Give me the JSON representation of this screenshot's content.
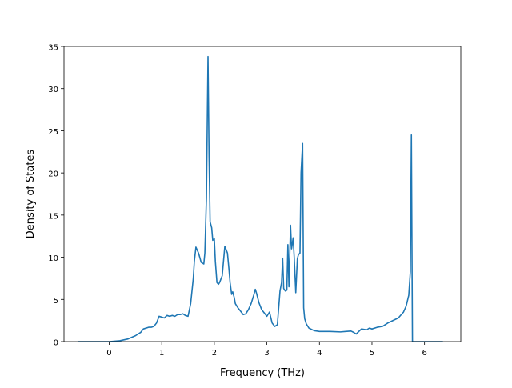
{
  "chart_data": {
    "type": "line",
    "xlabel": "Frequency (THz)",
    "ylabel": "Density of States",
    "xlim": [
      -0.86,
      6.69
    ],
    "ylim": [
      0,
      35
    ],
    "x_ticks": [
      0,
      1,
      2,
      3,
      4,
      5,
      6
    ],
    "x_tick_labels": [
      "0",
      "1",
      "2",
      "3",
      "4",
      "5",
      "6"
    ],
    "y_ticks": [
      0,
      5,
      10,
      15,
      20,
      25,
      30,
      35
    ],
    "y_tick_labels": [
      "0",
      "5",
      "10",
      "15",
      "20",
      "25",
      "30",
      "35"
    ],
    "grid": false,
    "series": [
      {
        "color": "#1f77b4",
        "x": [
          -0.6,
          0.0,
          0.2,
          0.35,
          0.5,
          0.6,
          0.65,
          0.75,
          0.8,
          0.85,
          0.9,
          0.95,
          1.0,
          1.05,
          1.1,
          1.15,
          1.2,
          1.25,
          1.3,
          1.35,
          1.4,
          1.45,
          1.5,
          1.55,
          1.6,
          1.62,
          1.65,
          1.7,
          1.75,
          1.8,
          1.82,
          1.85,
          1.88,
          1.9,
          1.92,
          1.95,
          1.97,
          2.0,
          2.02,
          2.05,
          2.08,
          2.1,
          2.15,
          2.2,
          2.25,
          2.28,
          2.3,
          2.33,
          2.35,
          2.38,
          2.4,
          2.45,
          2.5,
          2.55,
          2.6,
          2.65,
          2.7,
          2.75,
          2.78,
          2.8,
          2.85,
          2.9,
          2.95,
          3.0,
          3.05,
          3.1,
          3.15,
          3.2,
          3.25,
          3.28,
          3.3,
          3.32,
          3.35,
          3.38,
          3.4,
          3.42,
          3.45,
          3.47,
          3.5,
          3.52,
          3.55,
          3.58,
          3.6,
          3.63,
          3.65,
          3.68,
          3.7,
          3.72,
          3.75,
          3.8,
          3.9,
          4.0,
          4.2,
          4.4,
          4.5,
          4.6,
          4.65,
          4.7,
          4.75,
          4.8,
          4.9,
          4.95,
          5.0,
          5.1,
          5.2,
          5.3,
          5.4,
          5.5,
          5.6,
          5.65,
          5.7,
          5.73,
          5.75,
          5.77,
          5.78,
          6.0,
          6.35
        ],
        "y": [
          0.0,
          0.0,
          0.1,
          0.3,
          0.7,
          1.1,
          1.5,
          1.7,
          1.7,
          1.8,
          2.2,
          3.0,
          2.9,
          2.8,
          3.1,
          3.0,
          3.1,
          3.0,
          3.2,
          3.2,
          3.3,
          3.1,
          3.0,
          4.5,
          7.5,
          9.5,
          11.2,
          10.5,
          9.4,
          9.2,
          10.5,
          17.0,
          33.8,
          22.0,
          14.2,
          13.5,
          12.0,
          12.2,
          9.5,
          7.0,
          6.8,
          7.0,
          7.8,
          11.3,
          10.5,
          8.5,
          7.0,
          5.6,
          5.9,
          5.2,
          4.5,
          4.0,
          3.6,
          3.2,
          3.3,
          3.8,
          4.5,
          5.5,
          6.2,
          5.8,
          4.6,
          3.8,
          3.4,
          3.0,
          3.5,
          2.2,
          1.8,
          2.0,
          6.0,
          7.0,
          9.9,
          6.3,
          6.0,
          6.1,
          11.5,
          6.5,
          13.8,
          11.0,
          12.3,
          10.0,
          5.8,
          9.8,
          10.3,
          10.5,
          20.0,
          23.5,
          4.0,
          2.7,
          2.1,
          1.6,
          1.3,
          1.2,
          1.2,
          1.15,
          1.2,
          1.25,
          1.1,
          0.9,
          1.2,
          1.5,
          1.4,
          1.6,
          1.5,
          1.7,
          1.8,
          2.2,
          2.5,
          2.8,
          3.5,
          4.2,
          5.5,
          8.3,
          24.5,
          0.0,
          0.0,
          0.0,
          0.0
        ]
      }
    ]
  }
}
